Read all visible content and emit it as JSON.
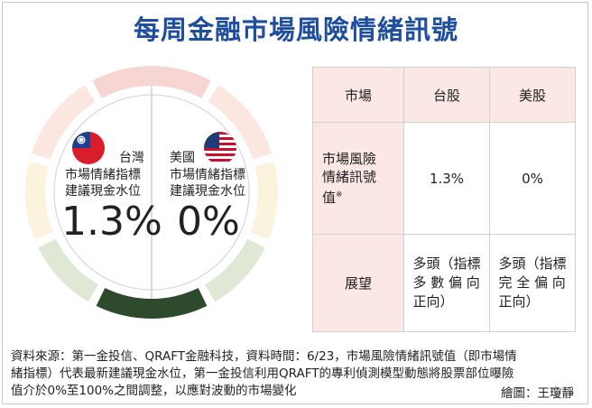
{
  "title": "每周金融市場風險情緒訊號",
  "colors": {
    "title": "#1f4e9c",
    "ring": [
      "#f7d5d2",
      "#fbe6e0",
      "#fbf3dd",
      "#f4f1e0",
      "#dfe8d5",
      "#c8d6bf",
      "#2d4a2d"
    ],
    "table_header": "#fbe7e4"
  },
  "gauge": {
    "left": {
      "country": "台灣",
      "flag_icon": "taiwan-flag-icon",
      "label_line1": "市場情緒指標",
      "label_line2": "建議現金水位",
      "value": "1.3%"
    },
    "right": {
      "country": "美國",
      "flag_icon": "usa-flag-icon",
      "label_line1": "市場情緒指標",
      "label_line2": "建議現金水位",
      "value": "0%"
    }
  },
  "table": {
    "header": {
      "market": "市場",
      "tw": "台股",
      "us": "美股"
    },
    "row1": {
      "label_line1": "市場風險",
      "label_line2": "情緒訊號",
      "label_line3": "值",
      "footnote_mark": "※",
      "tw": "1.3%",
      "us": "0%"
    },
    "row2": {
      "label": "展望",
      "tw_line1": "多頭（指標",
      "tw_line2": "多 數 偏 向",
      "tw_line3": "正向）",
      "us_line1": "多頭（指標",
      "us_line2": "完 全 偏 向",
      "us_line3": "正向）"
    }
  },
  "footer": {
    "line1": "資料來源：第一金投信、QRAFT金融科技，資料時間：6/23，市場風險情緒訊號值（即市場情",
    "line2": "緒指標）代表最新建議現金水位，第一金投信利用QRAFT的專利偵測模型動態將股票部位曝險",
    "line3": "值介於0%至100%之間調整，以應對波動的市場變化",
    "credit": "繪圖：王瓊靜"
  },
  "chart_data": {
    "type": "table",
    "title": "每周金融市場風險情緒訊號",
    "columns": [
      "市場",
      "台股",
      "美股"
    ],
    "rows": [
      [
        "市場風險情緒訊號值※",
        "1.3%",
        "0%"
      ],
      [
        "展望",
        "多頭（指標多數偏向正向）",
        "多頭（指標完全偏向正向）"
      ]
    ],
    "gauge_values": [
      {
        "market": "台灣",
        "cash_level_percent": 1.3
      },
      {
        "market": "美國",
        "cash_level_percent": 0
      }
    ]
  }
}
